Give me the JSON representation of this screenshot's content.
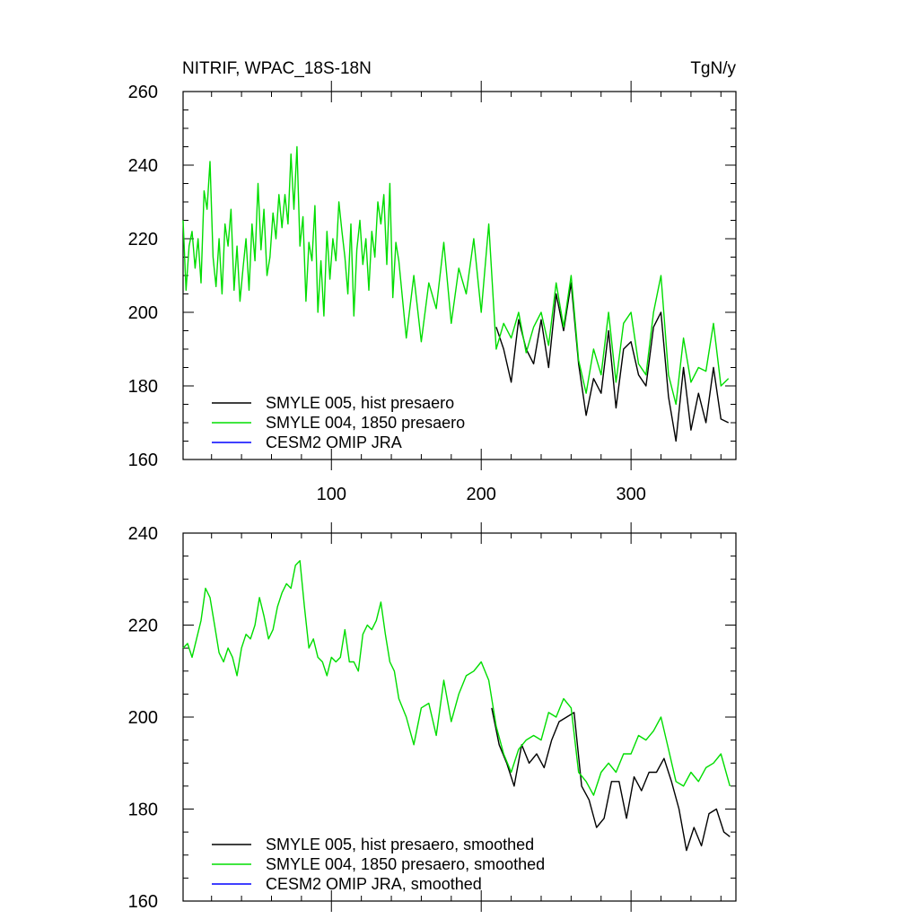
{
  "chart_data": [
    {
      "type": "line",
      "panel": "top",
      "title_left": "NITRIF, WPAC_18S-18N",
      "title_right": "TgN/y",
      "xlim": [
        1,
        370
      ],
      "ylim": [
        160,
        260
      ],
      "yticks": [
        160,
        180,
        200,
        220,
        240,
        260
      ],
      "xticks": [
        100,
        200,
        300
      ],
      "x_tick_labels_shown": true,
      "legend": {
        "location": "bottom-left",
        "entries": [
          {
            "label": "SMYLE 005, hist presaero",
            "color": "#000000"
          },
          {
            "label": "SMYLE 004, 1850 presaero",
            "color": "#00dd00"
          },
          {
            "label": "CESM2 OMIP JRA",
            "color": "#0000ff"
          }
        ]
      },
      "series": [
        {
          "name": "SMYLE 005, hist presaero",
          "color": "#000000",
          "x": [
            210,
            215,
            220,
            225,
            230,
            235,
            240,
            245,
            250,
            255,
            260,
            265,
            270,
            275,
            280,
            285,
            290,
            295,
            300,
            305,
            310,
            315,
            320,
            325,
            330,
            335,
            340,
            345,
            350,
            355,
            360,
            365
          ],
          "values": [
            196,
            190,
            181,
            198,
            190,
            186,
            198,
            185,
            205,
            195,
            208,
            186,
            172,
            182,
            178,
            195,
            174,
            190,
            192,
            183,
            180,
            196,
            200,
            177,
            165,
            185,
            168,
            178,
            170,
            185,
            171,
            170
          ]
        },
        {
          "name": "SMYLE 004, 1850 presaero",
          "color": "#00dd00",
          "x": [
            1,
            3,
            5,
            7,
            9,
            11,
            13,
            15,
            17,
            19,
            21,
            23,
            25,
            27,
            29,
            31,
            33,
            35,
            37,
            39,
            41,
            43,
            45,
            47,
            49,
            51,
            53,
            55,
            57,
            59,
            61,
            63,
            65,
            67,
            69,
            71,
            73,
            75,
            77,
            79,
            81,
            83,
            85,
            87,
            89,
            91,
            93,
            95,
            97,
            99,
            101,
            103,
            105,
            107,
            109,
            111,
            113,
            115,
            117,
            119,
            121,
            123,
            125,
            127,
            129,
            131,
            133,
            135,
            137,
            139,
            141,
            143,
            145,
            150,
            155,
            160,
            165,
            170,
            175,
            180,
            185,
            190,
            195,
            200,
            205,
            210,
            215,
            220,
            225,
            230,
            235,
            240,
            245,
            250,
            255,
            260,
            265,
            270,
            275,
            280,
            285,
            290,
            295,
            300,
            305,
            310,
            315,
            320,
            325,
            330,
            335,
            340,
            345,
            350,
            355,
            360,
            365
          ],
          "values": [
            225,
            206,
            218,
            222,
            212,
            220,
            208,
            233,
            228,
            241,
            215,
            207,
            220,
            205,
            224,
            218,
            228,
            206,
            218,
            203,
            212,
            220,
            206,
            224,
            214,
            235,
            217,
            228,
            210,
            215,
            227,
            220,
            232,
            223,
            232,
            224,
            243,
            228,
            245,
            218,
            226,
            203,
            219,
            214,
            229,
            200,
            214,
            199,
            222,
            209,
            220,
            214,
            230,
            222,
            215,
            205,
            224,
            199,
            217,
            225,
            213,
            220,
            206,
            222,
            215,
            230,
            224,
            232,
            213,
            235,
            204,
            219,
            214,
            193,
            210,
            192,
            208,
            201,
            219,
            197,
            212,
            205,
            220,
            200,
            224,
            190,
            197,
            193,
            200,
            189,
            196,
            200,
            191,
            208,
            196,
            210,
            187,
            178,
            190,
            183,
            200,
            181,
            197,
            200,
            186,
            183,
            200,
            210,
            183,
            175,
            193,
            181,
            185,
            184,
            197,
            180,
            182
          ]
        },
        {
          "name": "CESM2 OMIP JRA",
          "color": "#0000ff",
          "x": [],
          "values": []
        }
      ]
    },
    {
      "type": "line",
      "panel": "bottom",
      "xlim": [
        1,
        370
      ],
      "ylim": [
        160,
        240
      ],
      "yticks": [
        160,
        180,
        200,
        220,
        240
      ],
      "xticks": [
        100,
        200,
        300
      ],
      "x_tick_labels_shown": false,
      "legend": {
        "location": "bottom-left",
        "entries": [
          {
            "label": "SMYLE 005, hist presaero, smoothed",
            "color": "#000000"
          },
          {
            "label": "SMYLE 004, 1850 presaero, smoothed",
            "color": "#00dd00"
          },
          {
            "label": "CESM2 OMIP JRA, smoothed",
            "color": "#0000ff"
          }
        ]
      },
      "series": [
        {
          "name": "SMYLE 005, hist presaero, smoothed",
          "color": "#000000",
          "x": [
            207,
            212,
            217,
            222,
            227,
            232,
            237,
            242,
            247,
            252,
            257,
            262,
            267,
            272,
            277,
            282,
            287,
            292,
            297,
            302,
            307,
            312,
            317,
            322,
            327,
            332,
            337,
            342,
            347,
            352,
            357,
            362,
            366
          ],
          "values": [
            202,
            194,
            190,
            185,
            194,
            190,
            192,
            189,
            195,
            199,
            200,
            201,
            185,
            182,
            176,
            178,
            186,
            186,
            178,
            187,
            184,
            188,
            188,
            191,
            186,
            180,
            171,
            176,
            172,
            179,
            180,
            175,
            174
          ]
        },
        {
          "name": "SMYLE 004, 1850 presaero, smoothed",
          "color": "#00dd00",
          "x": [
            1,
            4,
            7,
            10,
            13,
            16,
            19,
            22,
            25,
            28,
            31,
            34,
            37,
            40,
            43,
            46,
            49,
            52,
            55,
            58,
            61,
            64,
            67,
            70,
            73,
            76,
            79,
            82,
            85,
            88,
            91,
            94,
            97,
            100,
            103,
            106,
            109,
            112,
            115,
            118,
            121,
            124,
            127,
            130,
            133,
            136,
            139,
            142,
            145,
            150,
            155,
            160,
            165,
            170,
            175,
            180,
            185,
            190,
            195,
            200,
            205,
            210,
            215,
            220,
            225,
            230,
            235,
            240,
            245,
            250,
            255,
            260,
            265,
            270,
            275,
            280,
            285,
            290,
            295,
            300,
            305,
            310,
            315,
            320,
            325,
            330,
            335,
            340,
            345,
            350,
            355,
            360,
            366
          ],
          "values": [
            215,
            216,
            213,
            217,
            221,
            228,
            226,
            220,
            214,
            212,
            215,
            213,
            209,
            215,
            218,
            217,
            220,
            226,
            222,
            217,
            219,
            224,
            227,
            229,
            228,
            233,
            234,
            224,
            215,
            217,
            213,
            212,
            209,
            213,
            212,
            213,
            219,
            212,
            212,
            210,
            218,
            220,
            219,
            221,
            225,
            218,
            212,
            210,
            204,
            200,
            194,
            202,
            203,
            196,
            208,
            199,
            205,
            209,
            210,
            212,
            208,
            198,
            192,
            188,
            193,
            195,
            196,
            195,
            201,
            200,
            204,
            202,
            188,
            186,
            183,
            188,
            190,
            188,
            192,
            192,
            196,
            195,
            197,
            200,
            193,
            186,
            185,
            188,
            186,
            189,
            190,
            192,
            185
          ]
        },
        {
          "name": "CESM2 OMIP JRA, smoothed",
          "color": "#0000ff",
          "x": [],
          "values": []
        }
      ]
    }
  ]
}
